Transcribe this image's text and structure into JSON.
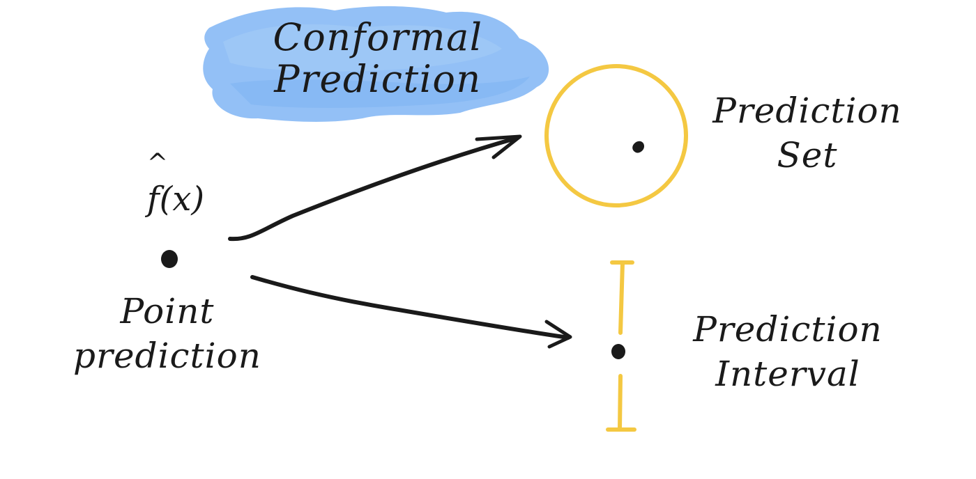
{
  "diagram": {
    "title": {
      "line1": "Conformal",
      "line2": "Prediction"
    },
    "point": {
      "function_label": "f(x)",
      "label_line1": "Point",
      "label_line2": "prediction"
    },
    "prediction_set": {
      "line1": "Prediction",
      "line2": "Set"
    },
    "prediction_interval": {
      "line1": "Prediction",
      "line2": "Interval"
    },
    "colors": {
      "highlight": "#8dbdf5",
      "accent": "#f4c842",
      "ink": "#1a1a1a",
      "background": "#ffffff"
    }
  }
}
